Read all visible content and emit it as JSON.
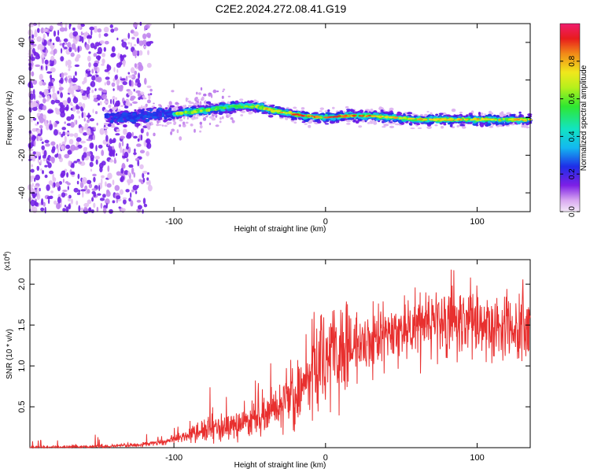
{
  "title": "C2E2.2024.272.08.41.G19",
  "chart_data": [
    {
      "type": "heatmap",
      "xlabel": "Height of straight line (km)",
      "ylabel": "Frequency (Hz)",
      "xlim": [
        -195,
        135
      ],
      "ylim": [
        -50,
        50
      ],
      "x_ticks": [
        -100,
        0,
        100
      ],
      "y_ticks": [
        -40,
        -20,
        0,
        20,
        40
      ],
      "colorbar": {
        "label": "Normalized spectral amplitude",
        "range": [
          0,
          1
        ],
        "ticks": [
          "0.0",
          "0.2",
          "0.4",
          "0.6",
          "0.8"
        ]
      },
      "ridge": {
        "x": [
          -140,
          -120,
          -100,
          -80,
          -60,
          -45,
          -30,
          -15,
          0,
          15,
          30,
          45,
          60,
          75,
          90,
          105,
          120,
          135
        ],
        "y": [
          0,
          1,
          2,
          4,
          6,
          6,
          3,
          1,
          0,
          1,
          1,
          0,
          -1,
          -1,
          -1,
          -1,
          -1,
          -1
        ]
      }
    },
    {
      "type": "line",
      "xlabel": "Height of straight line (km)",
      "ylabel": "SNR (10 * v/v)",
      "y_multiplier": "(x10^4)",
      "xlim": [
        -195,
        135
      ],
      "ylim": [
        0,
        2.3
      ],
      "x_ticks": [
        -100,
        0,
        100
      ],
      "y_ticks": [
        "0.5",
        "1.0",
        "1.5",
        "2.0"
      ],
      "series": [
        {
          "color": "#e8302f",
          "x": [
            -195,
            -160,
            -140,
            -125,
            -115,
            -105,
            -95,
            -85,
            -75,
            -65,
            -55,
            -45,
            -35,
            -25,
            -15,
            -5,
            5,
            15,
            25,
            35,
            45,
            55,
            65,
            75,
            85,
            95,
            105,
            115,
            125,
            135
          ],
          "y": [
            0.0,
            0.01,
            0.02,
            0.03,
            0.05,
            0.08,
            0.13,
            0.18,
            0.25,
            0.23,
            0.28,
            0.35,
            0.45,
            0.65,
            0.82,
            1.05,
            1.15,
            1.25,
            1.3,
            1.35,
            1.4,
            1.45,
            1.5,
            1.52,
            1.5,
            1.52,
            1.48,
            1.45,
            1.5,
            1.5
          ]
        }
      ]
    }
  ]
}
